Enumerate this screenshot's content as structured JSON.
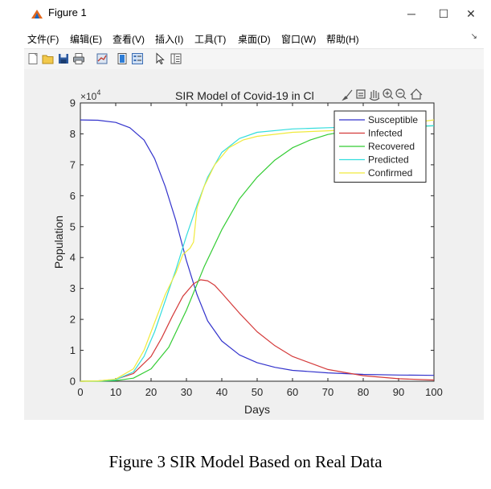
{
  "window": {
    "title": "Figure 1",
    "controls": [
      "─",
      "☐",
      "✕"
    ]
  },
  "menu": {
    "items": [
      "文件(F)",
      "编辑(E)",
      "查看(V)",
      "插入(I)",
      "工具(T)",
      "桌面(D)",
      "窗口(W)",
      "帮助(H)"
    ],
    "pin": "↘"
  },
  "toolbar": {
    "icons": [
      "new-figure-icon",
      "open-file-icon",
      "save-icon",
      "print-icon",
      "link-plot-icon",
      "insert-colorbar-icon",
      "insert-legend-icon",
      "edit-plot-icon",
      "property-inspector-icon"
    ]
  },
  "axes_toolbar": {
    "icons": [
      "brush-icon",
      "data-cursor-icon",
      "pan-icon",
      "zoom-in-icon",
      "zoom-out-icon",
      "home-icon"
    ]
  },
  "caption": "Figure 3 SIR Model Based on Real Data",
  "chart_data": {
    "type": "line",
    "title": "SIR Model of Covid-19 in Cl",
    "xlabel": "Days",
    "ylabel": "Population",
    "y_multiplier": "×10",
    "y_multiplier_exp": "4",
    "xlim": [
      0,
      100
    ],
    "ylim": [
      0,
      9
    ],
    "xticks": [
      0,
      10,
      20,
      30,
      40,
      50,
      60,
      70,
      80,
      90,
      100
    ],
    "yticks": [
      0,
      1,
      2,
      3,
      4,
      5,
      6,
      7,
      8,
      9
    ],
    "grid": false,
    "legend_position": "top-right",
    "series": [
      {
        "name": "Susceptible",
        "color": "#3333cc",
        "x": [
          0,
          5,
          10,
          14,
          18,
          21,
          24,
          27,
          30,
          33,
          36,
          40,
          45,
          50,
          55,
          60,
          70,
          80,
          90,
          100
        ],
        "y": [
          8.45,
          8.44,
          8.37,
          8.2,
          7.8,
          7.2,
          6.3,
          5.2,
          3.9,
          2.8,
          1.95,
          1.3,
          0.85,
          0.6,
          0.45,
          0.35,
          0.27,
          0.22,
          0.2,
          0.19
        ]
      },
      {
        "name": "Infected",
        "color": "#d43a3a",
        "x": [
          0,
          5,
          10,
          15,
          20,
          23,
          26,
          29,
          32,
          34,
          36,
          38,
          40,
          45,
          50,
          55,
          60,
          70,
          80,
          90,
          100
        ],
        "y": [
          0,
          0.01,
          0.06,
          0.25,
          0.8,
          1.4,
          2.1,
          2.75,
          3.15,
          3.28,
          3.25,
          3.1,
          2.85,
          2.2,
          1.6,
          1.15,
          0.8,
          0.38,
          0.18,
          0.08,
          0.04
        ]
      },
      {
        "name": "Recovered",
        "color": "#33cc33",
        "x": [
          0,
          5,
          10,
          15,
          20,
          25,
          30,
          35,
          40,
          45,
          50,
          55,
          60,
          65,
          70,
          75,
          80,
          90,
          100
        ],
        "y": [
          0,
          0,
          0.02,
          0.1,
          0.4,
          1.1,
          2.3,
          3.7,
          4.9,
          5.9,
          6.6,
          7.15,
          7.55,
          7.8,
          7.98,
          8.08,
          8.15,
          8.22,
          8.26
        ]
      },
      {
        "name": "Predicted",
        "color": "#33dddd",
        "x": [
          0,
          5,
          10,
          15,
          18,
          21,
          24,
          27,
          30,
          33,
          36,
          40,
          45,
          50,
          60,
          70,
          80,
          90,
          100
        ],
        "y": [
          0,
          0.01,
          0.05,
          0.3,
          0.8,
          1.6,
          2.6,
          3.6,
          4.7,
          5.7,
          6.6,
          7.4,
          7.85,
          8.05,
          8.16,
          8.2,
          8.23,
          8.25,
          8.26
        ]
      },
      {
        "name": "Confirmed",
        "color": "#f0ea3c",
        "x": [
          0,
          5,
          10,
          15,
          18,
          21,
          24,
          27,
          29,
          31,
          32,
          33,
          35,
          38,
          42,
          46,
          50,
          60,
          70,
          80,
          90,
          100
        ],
        "y": [
          0,
          0.01,
          0.07,
          0.4,
          1.0,
          1.9,
          2.8,
          3.5,
          4.1,
          4.3,
          4.5,
          5.6,
          6.3,
          7.0,
          7.55,
          7.8,
          7.92,
          8.05,
          8.1,
          8.15,
          8.3,
          8.45
        ]
      }
    ]
  }
}
